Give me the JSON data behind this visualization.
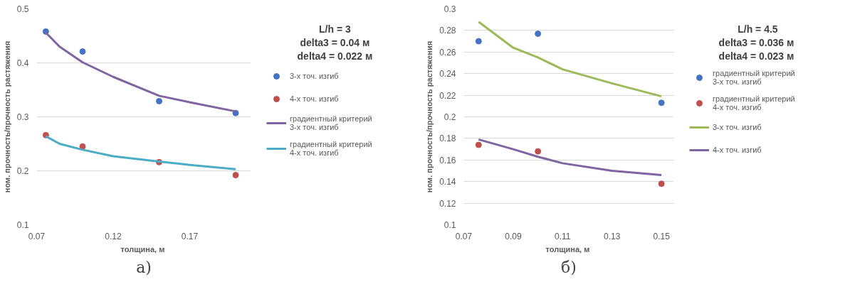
{
  "chart_data": [
    {
      "type": "scatter",
      "xlabel": "толщина,  м",
      "ylabel": "ном. прочность/прочность растяжения",
      "annotations": [
        "L/h = 3",
        "delta3 = 0.04 м",
        "delta4 = 0.022 м",
        "а)"
      ],
      "xlim": [
        0.07,
        0.21
      ],
      "xticks": [
        0.07,
        0.12,
        0.17
      ],
      "ylim": [
        0.1,
        0.5
      ],
      "yticks": [
        0.1,
        0.2,
        0.3,
        0.4,
        0.5
      ],
      "grid": "y",
      "legend": "right",
      "series": [
        {
          "name": "3-х точ. изгиб",
          "color": "#4472c4",
          "marker": "circle",
          "x": [
            0.076,
            0.1,
            0.15,
            0.2
          ],
          "values": [
            0.458,
            0.421,
            0.329,
            0.307
          ]
        },
        {
          "name": "4-х точ. изгиб",
          "color": "#c0504d",
          "marker": "circle",
          "x": [
            0.076,
            0.1,
            0.15,
            0.2
          ],
          "values": [
            0.266,
            0.245,
            0.216,
            0.192
          ]
        },
        {
          "name": "градиентный критерий 3-х точ. изгиб",
          "type": "line",
          "color": "#8064a2",
          "x": [
            0.076,
            0.085,
            0.1,
            0.12,
            0.15,
            0.17,
            0.2
          ],
          "values": [
            0.456,
            0.43,
            0.401,
            0.374,
            0.339,
            0.327,
            0.31
          ]
        },
        {
          "name": "градиентный критерий 4-х точ. изгиб",
          "type": "line",
          "color": "#4bacc6",
          "x": [
            0.076,
            0.085,
            0.1,
            0.12,
            0.15,
            0.17,
            0.2
          ],
          "values": [
            0.264,
            0.25,
            0.239,
            0.227,
            0.217,
            0.211,
            0.203
          ]
        }
      ]
    },
    {
      "type": "scatter",
      "xlabel": "толщина,  м",
      "ylabel": "ном. прочность/прочность растяжения",
      "annotations": [
        "L/h = 4.5",
        "delta3 = 0.036  м",
        "delta4 = 0.023  м",
        "б)"
      ],
      "xlim": [
        0.07,
        0.155
      ],
      "xticks": [
        0.07,
        0.09,
        0.11,
        0.13,
        0.15
      ],
      "ylim": [
        0.1,
        0.3
      ],
      "yticks": [
        0.1,
        0.12,
        0.14,
        0.16,
        0.18,
        0.2,
        0.22,
        0.24,
        0.26,
        0.28,
        0.3
      ],
      "grid": "y",
      "legend": "right",
      "series": [
        {
          "name": "градиентный критерий 3-х точ. изгиб",
          "color": "#4472c4",
          "marker": "circle",
          "x": [
            0.076,
            0.1,
            0.15
          ],
          "values": [
            0.27,
            0.277,
            0.213
          ]
        },
        {
          "name": "градиентный критерий 4-х точ. изгиб",
          "color": "#c0504d",
          "marker": "circle",
          "x": [
            0.076,
            0.1,
            0.15
          ],
          "values": [
            0.174,
            0.168,
            0.138
          ]
        },
        {
          "name": "3-х точ. изгиб",
          "type": "line",
          "color": "#9bbb59",
          "x": [
            0.076,
            0.09,
            0.1,
            0.11,
            0.13,
            0.15
          ],
          "values": [
            0.288,
            0.264,
            0.255,
            0.244,
            0.231,
            0.219
          ]
        },
        {
          "name": "4-х точ. изгиб",
          "type": "line",
          "color": "#8064a2",
          "x": [
            0.076,
            0.09,
            0.1,
            0.11,
            0.13,
            0.15
          ],
          "values": [
            0.179,
            0.17,
            0.163,
            0.157,
            0.15,
            0.146
          ]
        }
      ]
    }
  ]
}
